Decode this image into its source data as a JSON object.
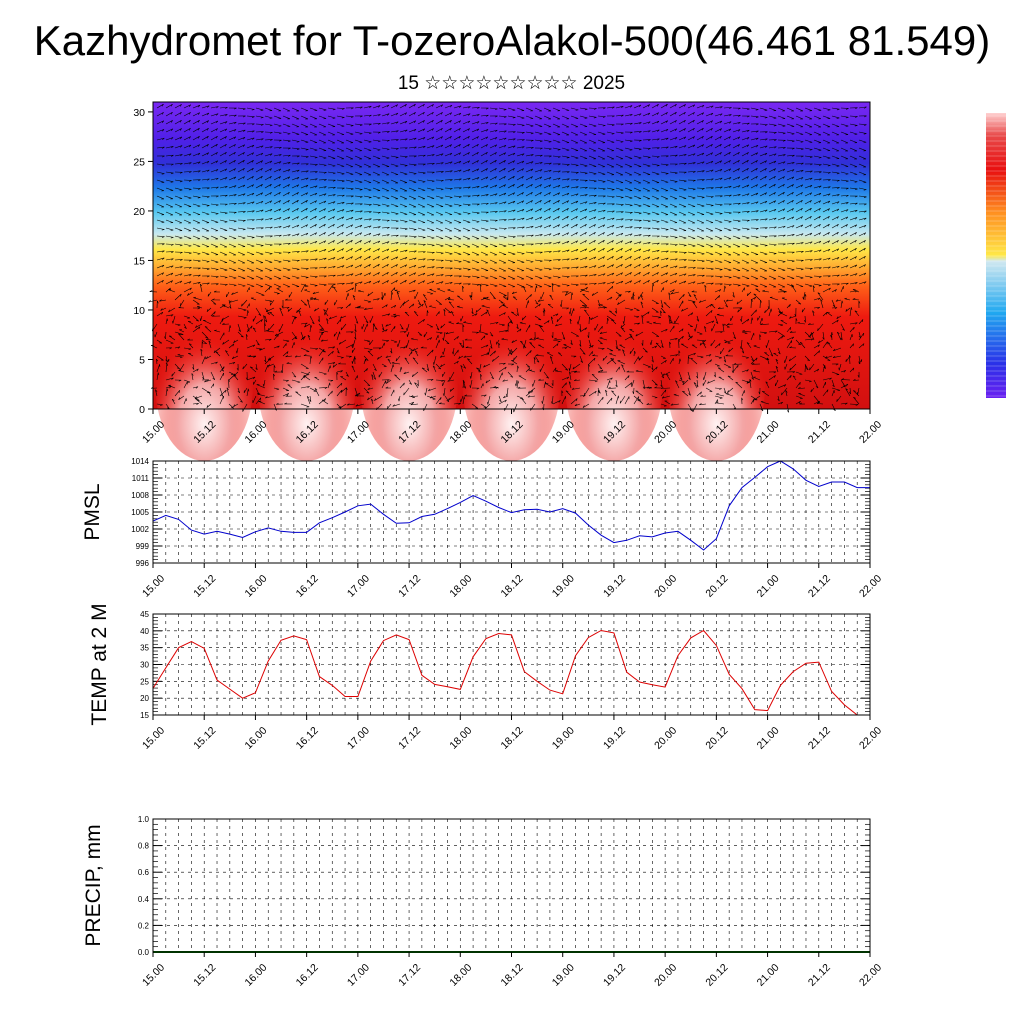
{
  "header": {
    "title": "Kazhydromet for T-ozeroAlakol-500(46.461 81.549)",
    "subtitle": "15 ☆☆☆☆☆☆☆☆☆ 2025"
  },
  "chart_data": [
    {
      "type": "heatmap",
      "title": "",
      "ylabel": "",
      "xlabel": "",
      "x_tick_labels": [
        "15.00",
        "15.12",
        "16.00",
        "16.12",
        "17.00",
        "17.12",
        "18.00",
        "18.12",
        "19.00",
        "19.12",
        "20.00",
        "20.12",
        "21.00",
        "21.12",
        "22.00"
      ],
      "ylim": [
        0,
        31
      ],
      "y_ticks": [
        0,
        5,
        10,
        15,
        20,
        25,
        30
      ],
      "colorbar": "blue-purple at top, yellow mid, red low, light pink surface maxima",
      "colors": {
        "low": "#e01010",
        "mid": "#ffe040",
        "high": "#6a20f0",
        "warmest": "#ffe6e6"
      },
      "overlay": "wind vectors (black arrows)"
    },
    {
      "type": "line",
      "ylabel": "PMSL",
      "ylim": [
        996,
        1014
      ],
      "y_ticks": [
        996,
        999,
        1002,
        1005,
        1008,
        1011,
        1014
      ],
      "x_tick_labels": [
        "15.00",
        "15.12",
        "16.00",
        "16.12",
        "17.00",
        "17.12",
        "18.00",
        "18.12",
        "19.00",
        "19.12",
        "20.00",
        "20.12",
        "21.00",
        "21.12",
        "22.00"
      ],
      "color": "#0000cc",
      "x": [
        0,
        3,
        6,
        9,
        12,
        15,
        18,
        21,
        24,
        27,
        30,
        33,
        36,
        39,
        42,
        45,
        48,
        51,
        54,
        57,
        60,
        63,
        66,
        69,
        72,
        75,
        78,
        81,
        84,
        87,
        90,
        93,
        96,
        99,
        102,
        105,
        108,
        111,
        114,
        117,
        120,
        123,
        126,
        129,
        132,
        135,
        138,
        141,
        144,
        147,
        150,
        153,
        156,
        159,
        162,
        165,
        168
      ],
      "values": [
        1003.4,
        1004.4,
        1003.7,
        1001.8,
        1001.1,
        1001.6,
        1001.1,
        1000.5,
        1001.5,
        1002.2,
        1001.6,
        1001.4,
        1001.4,
        1003.1,
        1004.0,
        1005.0,
        1006.1,
        1006.4,
        1004.6,
        1003.0,
        1003.1,
        1004.2,
        1004.6,
        1005.6,
        1006.7,
        1007.9,
        1006.9,
        1005.8,
        1004.9,
        1005.4,
        1005.5,
        1005.0,
        1005.6,
        1004.8,
        1002.7,
        1000.9,
        999.6,
        1000.0,
        1000.8,
        1000.6,
        1001.3,
        1001.6,
        1000.0,
        998.3,
        1000.3,
        1006.1,
        1009.3,
        1011.1,
        1013.0,
        1014.0,
        1012.6,
        1010.6,
        1009.5,
        1010.3,
        1010.3,
        1009.3,
        1009.3
      ]
    },
    {
      "type": "line",
      "ylabel": "TEMP at 2 M",
      "ylim": [
        15,
        45
      ],
      "y_ticks": [
        15,
        20,
        25,
        30,
        35,
        40,
        45
      ],
      "x_tick_labels": [
        "15.00",
        "15.12",
        "16.00",
        "16.12",
        "17.00",
        "17.12",
        "18.00",
        "18.12",
        "19.00",
        "19.12",
        "20.00",
        "20.12",
        "21.00",
        "21.12",
        "22.00"
      ],
      "color": "#dd0000",
      "x": [
        0,
        3,
        6,
        9,
        12,
        15,
        18,
        21,
        24,
        27,
        30,
        33,
        36,
        39,
        42,
        45,
        48,
        51,
        54,
        57,
        60,
        63,
        66,
        69,
        72,
        75,
        78,
        81,
        84,
        87,
        90,
        93,
        96,
        99,
        102,
        105,
        108,
        111,
        114,
        117,
        120,
        123,
        126,
        129,
        132,
        135,
        138,
        141,
        144,
        147,
        150,
        153,
        156,
        159,
        162,
        165,
        168
      ],
      "values": [
        22.9,
        29.0,
        35.0,
        36.8,
        34.8,
        25.4,
        22.7,
        20.0,
        21.6,
        31.0,
        37.2,
        38.5,
        37.4,
        26.4,
        23.8,
        20.5,
        20.5,
        31.0,
        37.1,
        38.8,
        37.4,
        26.8,
        24.1,
        23.4,
        22.6,
        32.3,
        37.7,
        39.2,
        38.8,
        27.9,
        25.0,
        22.4,
        21.3,
        32.6,
        38.0,
        40.1,
        39.4,
        27.7,
        24.8,
        24.0,
        23.3,
        32.6,
        37.9,
        40.1,
        35.6,
        27.1,
        22.8,
        16.6,
        16.3,
        23.8,
        27.9,
        30.4,
        30.7,
        22.0,
        18.0,
        15.0,
        15.0
      ]
    },
    {
      "type": "line",
      "ylabel": "PRECIP, mm",
      "ylim": [
        0,
        1
      ],
      "y_ticks": [
        0.0,
        0.2,
        0.4,
        0.6,
        0.8,
        1.0
      ],
      "y_tick_labels": [
        "0.0",
        "0.2",
        "0.4",
        "0.6",
        "0.8",
        "1.0"
      ],
      "x_tick_labels": [
        "15.00",
        "15.12",
        "16.00",
        "16.12",
        "17.00",
        "17.12",
        "18.00",
        "18.12",
        "19.00",
        "19.12",
        "20.00",
        "20.12",
        "21.00",
        "21.12",
        "22.00"
      ],
      "color": "#006600",
      "x": [
        0,
        168
      ],
      "values": [
        0,
        0
      ]
    }
  ]
}
